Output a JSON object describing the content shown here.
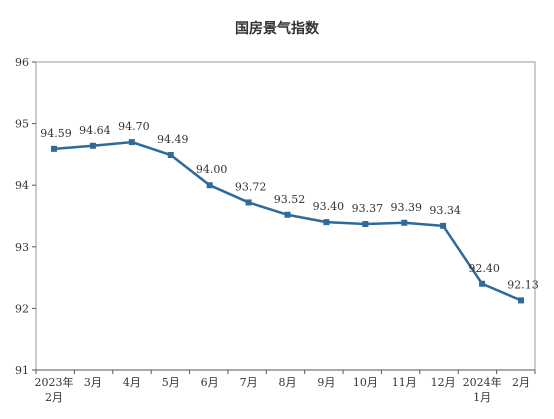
{
  "chart_data": {
    "type": "line",
    "title": "国房景气指数",
    "xlabel": "",
    "ylabel": "",
    "categories": [
      [
        "2023年",
        "2月"
      ],
      [
        "3月"
      ],
      [
        "4月"
      ],
      [
        "5月"
      ],
      [
        "6月"
      ],
      [
        "7月"
      ],
      [
        "8月"
      ],
      [
        "9月"
      ],
      [
        "10月"
      ],
      [
        "11月"
      ],
      [
        "12月"
      ],
      [
        "2024年",
        "1月"
      ],
      [
        "2月"
      ]
    ],
    "series": [
      {
        "values": [
          94.59,
          94.64,
          94.7,
          94.49,
          94.0,
          93.72,
          93.52,
          93.4,
          93.37,
          93.39,
          93.34,
          92.4,
          92.13
        ],
        "labels": [
          "94.59",
          "94.64",
          "94.70",
          "94.49",
          "94.00",
          "93.72",
          "93.52",
          "93.40",
          "93.37",
          "93.39",
          "93.34",
          "92.40",
          "92.13"
        ]
      }
    ],
    "ylim": [
      91,
      96
    ],
    "yticks": [
      91,
      92,
      93,
      94,
      95,
      96
    ],
    "grid": false,
    "legend": "none",
    "colors": {
      "line": "#2e6a9a",
      "marker": "#2e6a9a",
      "axis": "#555555",
      "frame": "#999999"
    }
  }
}
